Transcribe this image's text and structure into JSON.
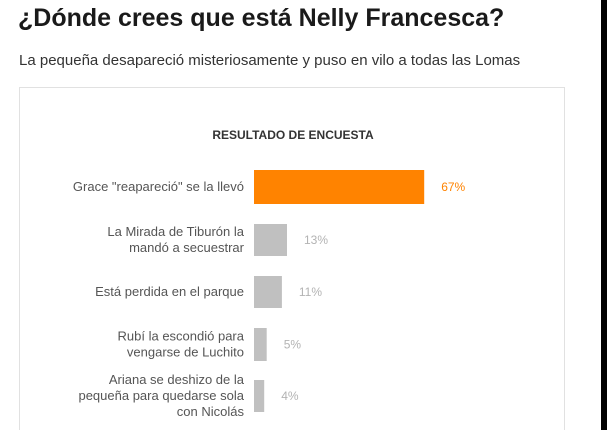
{
  "headline": "¿Dónde crees que está Nelly Francesca?",
  "subheadline": "La pequeña desapareció misteriosamente y puso en vilo a todas las Lomas",
  "colors": {
    "leader": "#ff8300",
    "other": "#c0c0c0",
    "leader_text": "#ff8300",
    "other_text": "#b3b3b3"
  },
  "chart_data": {
    "type": "bar",
    "orientation": "horizontal",
    "title": "RESULTADO DE ENCUESTA",
    "categories": [
      "Grace \"reapareció\" se la llevó",
      "La Mirada de Tiburón la mandó a secuestrar",
      "Está perdida en el parque",
      "Rubí la escondió para vengarse de Luchito",
      "Ariana se deshizo de la pequeña para quedarse sola con Nicolás"
    ],
    "category_lines": [
      [
        "Grace \"reapareció\" se la llevó"
      ],
      [
        "La Mirada de Tiburón la",
        "mandó a secuestrar"
      ],
      [
        "Está perdida en el parque"
      ],
      [
        "Rubí la escondió para",
        "vengarse de Luchito"
      ],
      [
        "Ariana se deshizo de la",
        "pequeña para quedarse sola",
        "con Nicolás"
      ]
    ],
    "values": [
      67,
      13,
      11,
      5,
      4
    ],
    "value_labels": [
      "67%",
      "13%",
      "11%",
      "5%",
      "4%"
    ],
    "xlim": [
      0,
      100
    ],
    "grid": false,
    "legend": "none"
  }
}
